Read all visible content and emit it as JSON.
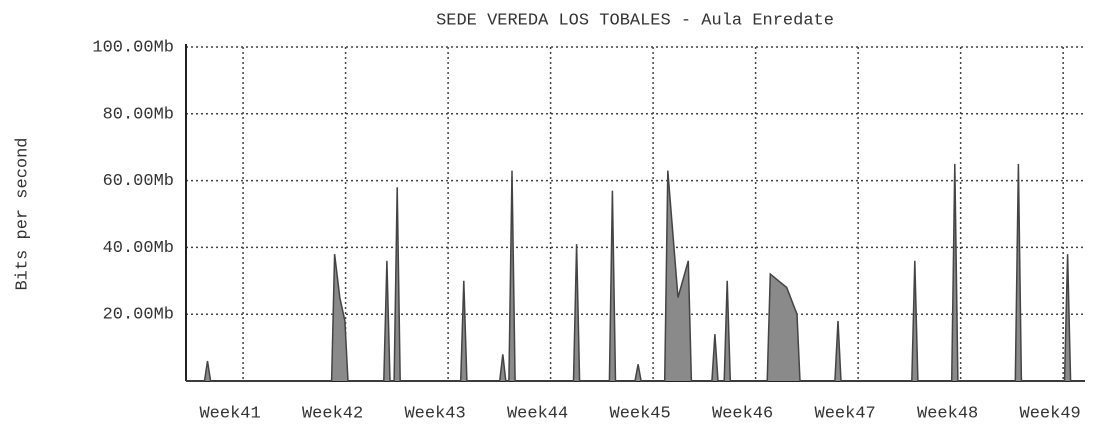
{
  "chart_data": {
    "type": "area",
    "title": "SEDE VEREDA LOS TOBALES - Aula Enredate",
    "y_label": "Bits per second",
    "color": "#8a8a8a",
    "x": [
      40.57,
      40.75,
      40.78,
      40.81,
      41.99,
      42.02,
      42.07,
      42.12,
      42.15,
      42.5,
      42.53,
      42.56,
      42.6,
      42.63,
      42.66,
      43.25,
      43.28,
      43.31,
      43.63,
      43.66,
      43.69,
      43.72,
      43.75,
      43.78,
      44.35,
      44.38,
      44.41,
      44.7,
      44.73,
      44.76,
      44.95,
      44.98,
      45.01,
      45.24,
      45.27,
      45.37,
      45.47,
      45.5,
      45.7,
      45.73,
      45.76,
      45.82,
      45.85,
      45.88,
      46.24,
      46.27,
      46.35,
      46.43,
      46.53,
      46.56,
      46.9,
      46.93,
      46.96,
      47.65,
      47.68,
      47.71,
      48.04,
      48.07,
      48.1,
      48.66,
      48.69,
      48.72,
      49.14,
      49.17,
      49.2,
      49.34
    ],
    "values": [
      0,
      0,
      6,
      0,
      0,
      38,
      25,
      18,
      0,
      0,
      36,
      0,
      0,
      58,
      0,
      0,
      30,
      0,
      0,
      8,
      0,
      0,
      63,
      0,
      0,
      41,
      0,
      0,
      57,
      0,
      0,
      5,
      0,
      0,
      63,
      25,
      36,
      0,
      0,
      14,
      0,
      0,
      30,
      0,
      0,
      32,
      30,
      28,
      20,
      0,
      0,
      18,
      0,
      0,
      36,
      0,
      0,
      65,
      0,
      0,
      65,
      0,
      0,
      38,
      0,
      0
    ],
    "xlim": [
      40.57,
      49.34
    ],
    "xticks": [
      {
        "value": 41,
        "label": "Week41"
      },
      {
        "value": 42,
        "label": "Week42"
      },
      {
        "value": 43,
        "label": "Week43"
      },
      {
        "value": 44,
        "label": "Week44"
      },
      {
        "value": 45,
        "label": "Week45"
      },
      {
        "value": 46,
        "label": "Week46"
      },
      {
        "value": 47,
        "label": "Week47"
      },
      {
        "value": 48,
        "label": "Week48"
      },
      {
        "value": 49,
        "label": "Week49"
      }
    ],
    "ylim": [
      0,
      100
    ],
    "yticks": [
      0,
      {
        "value": 20,
        "label": "20.00Mb"
      },
      {
        "value": 40,
        "label": "40.00Mb"
      },
      {
        "value": 60,
        "label": "60.00Mb"
      },
      {
        "value": 80,
        "label": "80.00Mb"
      },
      {
        "value": 100,
        "label": "100.00Mb"
      }
    ],
    "grid": true
  }
}
